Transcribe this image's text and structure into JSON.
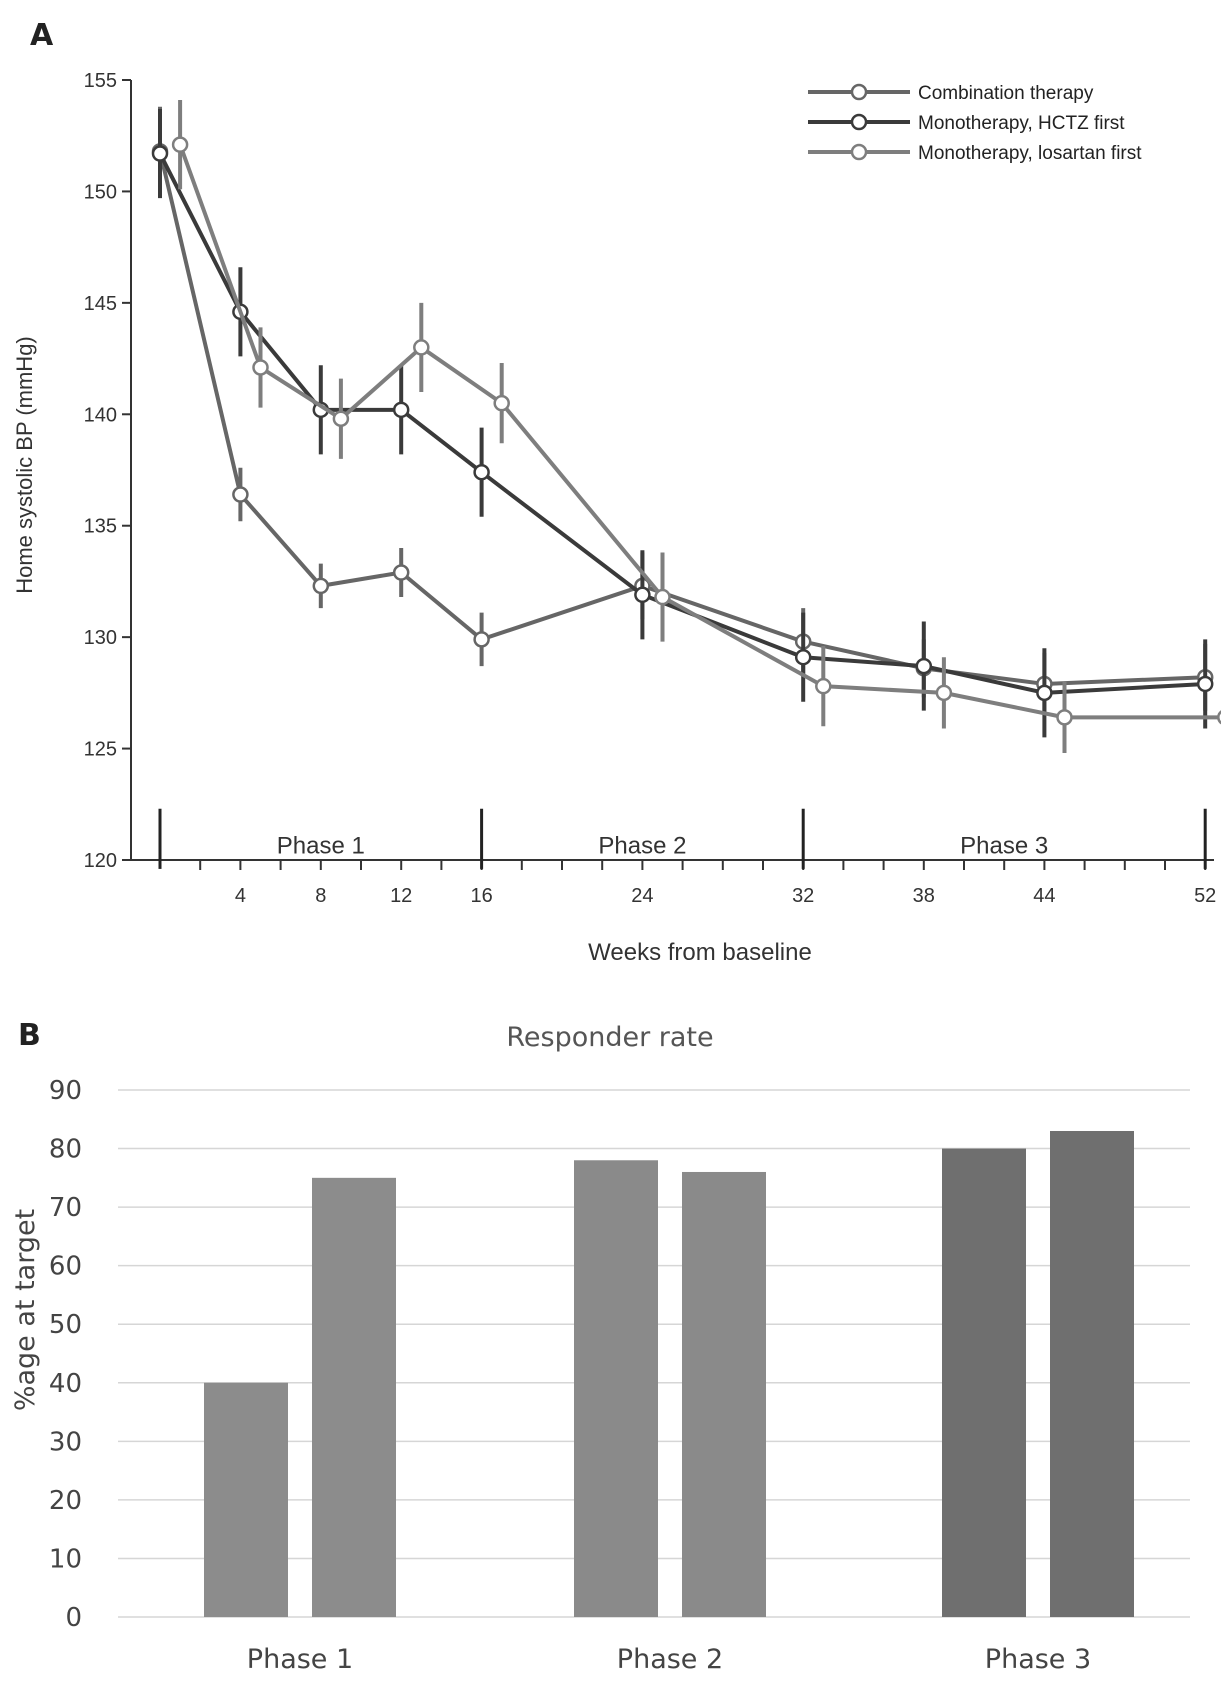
{
  "colors": {
    "combination": "#666666",
    "hctz_first": "#3a3a3a",
    "losartan_first": "#7e7e7e",
    "bar_phase1": "#8c8c8c",
    "bar_phase2": "#8a8a8a",
    "bar_phase3": "#6f6f6f",
    "axis": "#333333",
    "grid": "#d6d6d6"
  },
  "chart_data": [
    {
      "panel_label": "A",
      "type": "line",
      "title": "",
      "xlabel": "Weeks from baseline",
      "ylabel": "Home systolic BP (mmHg)",
      "ylim": [
        120,
        155
      ],
      "xlim": [
        0,
        54
      ],
      "y_ticks": [
        120,
        125,
        130,
        135,
        140,
        145,
        150,
        155
      ],
      "x_tick_labels": [
        4,
        8,
        12,
        16,
        24,
        32,
        38,
        44,
        52
      ],
      "x_tick_positions": [
        2,
        4,
        6,
        8,
        10,
        12,
        14,
        16,
        18,
        20,
        22,
        24,
        26,
        28,
        30,
        32,
        34,
        36,
        38,
        40,
        42,
        44,
        46,
        48,
        50,
        52,
        54
      ],
      "grid": false,
      "legend_position": "top-right",
      "phases": [
        {
          "label": "Phase 1",
          "start": 0,
          "end": 16
        },
        {
          "label": "Phase 2",
          "start": 16,
          "end": 32
        },
        {
          "label": "Phase 3",
          "start": 32,
          "end": 52
        }
      ],
      "series": [
        {
          "name": "Combination therapy",
          "color_key": "combination",
          "x": [
            0,
            4,
            8,
            12,
            16,
            24,
            32,
            38,
            44,
            52
          ],
          "y": [
            151.8,
            136.4,
            132.3,
            132.9,
            129.9,
            132.3,
            129.8,
            128.6,
            127.9,
            128.2
          ],
          "err": [
            2.0,
            1.2,
            1.0,
            1.1,
            1.2,
            1.5,
            1.5,
            1.3,
            1.4,
            1.5
          ]
        },
        {
          "name": "Monotherapy, HCTZ first",
          "color_key": "hctz_first",
          "x": [
            0,
            4,
            8,
            12,
            16,
            24,
            32,
            38,
            44,
            52
          ],
          "y": [
            151.7,
            144.6,
            140.2,
            140.2,
            137.4,
            131.9,
            129.1,
            128.7,
            127.5,
            127.9
          ],
          "err": [
            2.0,
            2.0,
            2.0,
            2.0,
            2.0,
            2.0,
            2.0,
            2.0,
            2.0,
            2.0
          ]
        },
        {
          "name": "Monotherapy, losartan first",
          "color_key": "losartan_first",
          "x": [
            1,
            5,
            9,
            13,
            17,
            25,
            33,
            39,
            45,
            53
          ],
          "y": [
            152.1,
            142.1,
            139.8,
            143.0,
            140.5,
            131.8,
            127.8,
            127.5,
            126.4,
            126.4
          ],
          "err": [
            2.0,
            1.8,
            1.8,
            2.0,
            1.8,
            2.0,
            1.8,
            1.6,
            1.6,
            1.6
          ]
        }
      ]
    },
    {
      "panel_label": "B",
      "type": "bar",
      "title": "Responder rate",
      "xlabel": "",
      "ylabel": "%age at target",
      "ylim": [
        0,
        90
      ],
      "y_ticks": [
        0,
        10,
        20,
        30,
        40,
        50,
        60,
        70,
        80,
        90
      ],
      "grid": true,
      "categories": [
        "Phase 1",
        "Phase 2",
        "Phase 3"
      ],
      "series": [
        {
          "values": [
            40,
            78,
            80
          ]
        },
        {
          "values": [
            75,
            76,
            83
          ]
        }
      ]
    }
  ]
}
